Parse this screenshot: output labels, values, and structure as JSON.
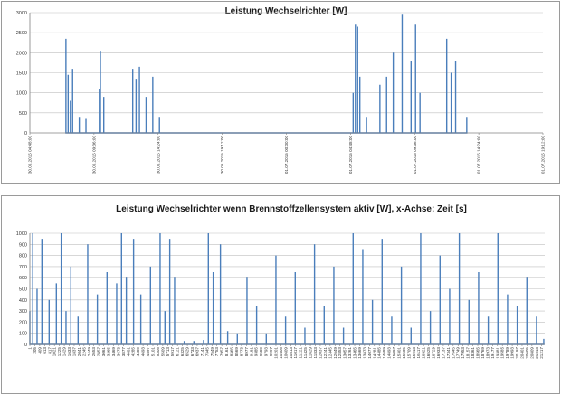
{
  "colors": {
    "series": "#4A7EBB",
    "grid": "#BFBFBF",
    "axis": "#808080",
    "panel_border": "#9A9A9A",
    "background": "#FFFFFF"
  },
  "chart_data": [
    {
      "type": "area",
      "title": "Leistung Wechselrichter [W]",
      "xlabel": "",
      "ylabel": "",
      "ylim": [
        0,
        3000
      ],
      "y_ticks": [
        0,
        500,
        1000,
        1500,
        2000,
        2500,
        3000
      ],
      "grid": "horizontal",
      "legend": "none",
      "x_tick_labels": [
        "30.06.2015 04:48:00",
        "30.06.2015 09:36:00",
        "30.06.2015 14:24:00",
        "30.06.2015 19:12:00",
        "01.07.2015 00:00:00",
        "01.07.2015 04:48:00",
        "01.07.2015 09:36:00",
        "01.07.2015 14:24:00",
        "01.07.2015 19:12:00"
      ],
      "series": [
        {
          "x": [
            "30.06.2015 07:30:00",
            "30.06.2015 07:40:00",
            "30.06.2015 07:50:00",
            "30.06.2015 08:00:00",
            "30.06.2015 08:30:00",
            "30.06.2015 09:00:00",
            "30.06.2015 10:00:00",
            "30.06.2015 10:05:00",
            "30.06.2015 10:20:00",
            "30.06.2015 12:30:00",
            "30.06.2015 12:45:00",
            "30.06.2015 13:00:00",
            "30.06.2015 13:30:00",
            "30.06.2015 14:00:00",
            "30.06.2015 14:30:00",
            "01.07.2015 05:00:00",
            "01.07.2015 05:10:00",
            "01.07.2015 05:20:00",
            "01.07.2015 05:30:00",
            "01.07.2015 06:00:00",
            "01.07.2015 07:00:00",
            "01.07.2015 07:30:00",
            "01.07.2015 08:00:00",
            "01.07.2015 08:40:00",
            "01.07.2015 09:20:00",
            "01.07.2015 09:40:00",
            "01.07.2015 10:00:00",
            "01.07.2015 12:00:00",
            "01.07.2015 12:20:00",
            "01.07.2015 12:40:00",
            "01.07.2015 13:30:00"
          ],
          "values": [
            2350,
            1450,
            800,
            1600,
            400,
            350,
            1100,
            2050,
            900,
            1600,
            1350,
            1650,
            900,
            1400,
            400,
            1000,
            2700,
            2650,
            1400,
            400,
            1200,
            1400,
            2000,
            2950,
            1800,
            2700,
            1000,
            2350,
            1500,
            1800,
            400
          ]
        }
      ]
    },
    {
      "type": "area",
      "title": "Leistung Wechselrichter wenn Brennstoffzellensystem aktiv [W], x-Achse: Zeit [s]",
      "xlabel": "",
      "ylabel": "",
      "ylim": [
        0,
        1000
      ],
      "y_ticks": [
        0,
        100,
        200,
        300,
        400,
        500,
        600,
        700,
        800,
        900,
        1000
      ],
      "grid": "horizontal",
      "legend": "none",
      "x_tick_labels": [
        "1",
        "205",
        "409",
        "613",
        "817",
        "1021",
        "1225",
        "1429",
        "1633",
        "1837",
        "2041",
        "2245",
        "2449",
        "2653",
        "2857",
        "3061",
        "3265",
        "3469",
        "3673",
        "3877",
        "4081",
        "4285",
        "4489",
        "4693",
        "4897",
        "5101",
        "5305",
        "5509",
        "5713",
        "5917",
        "6121",
        "6325",
        "6529",
        "6733",
        "6937",
        "7141",
        "7345",
        "7549",
        "7753",
        "7957",
        "8161",
        "8365",
        "8569",
        "8773",
        "8977",
        "9181",
        "9385",
        "9589",
        "9793",
        "9997",
        "10201",
        "10405",
        "10609",
        "10813",
        "11017",
        "11221",
        "11425",
        "11629",
        "11833",
        "12037",
        "12241",
        "12445",
        "12649",
        "12853",
        "13057",
        "13261",
        "13465",
        "13669",
        "13873",
        "14077",
        "14281",
        "14485",
        "14689",
        "14893",
        "15097",
        "15301",
        "15505",
        "15709",
        "15913",
        "16117",
        "16321",
        "16525",
        "16729",
        "16933",
        "17137",
        "17341",
        "17545",
        "17749",
        "17953",
        "18157",
        "18361",
        "18565",
        "18769",
        "18973",
        "19177",
        "19381",
        "19585",
        "19789",
        "19993",
        "20197",
        "20401",
        "20605",
        "20809",
        "21013",
        "21217"
      ],
      "series": [
        {
          "x": [
            1,
            120,
            300,
            500,
            800,
            1100,
            1300,
            1500,
            1700,
            2000,
            2400,
            2800,
            3200,
            3600,
            3800,
            4000,
            4300,
            4600,
            5000,
            5400,
            5600,
            5800,
            6000,
            6400,
            6800,
            7200,
            7400,
            7600,
            7900,
            8200,
            8600,
            9000,
            9400,
            9800,
            10200,
            10600,
            11000,
            11400,
            11800,
            12200,
            12600,
            13000,
            13400,
            13800,
            14200,
            14600,
            15000,
            15400,
            15800,
            16200,
            16600,
            17000,
            17400,
            17800,
            18200,
            18600,
            19000,
            19400,
            19800,
            20200,
            20600,
            21000,
            21300
          ],
          "values": [
            300,
            1000,
            500,
            950,
            400,
            550,
            1000,
            300,
            700,
            250,
            900,
            450,
            650,
            550,
            1000,
            600,
            950,
            450,
            700,
            1000,
            300,
            950,
            600,
            30,
            30,
            40,
            1000,
            650,
            900,
            120,
            100,
            600,
            350,
            100,
            800,
            250,
            650,
            150,
            900,
            350,
            700,
            150,
            1000,
            850,
            400,
            950,
            250,
            700,
            150,
            1000,
            300,
            800,
            500,
            1000,
            400,
            650,
            250,
            1000,
            450,
            350,
            600,
            250,
            50
          ]
        }
      ]
    }
  ]
}
